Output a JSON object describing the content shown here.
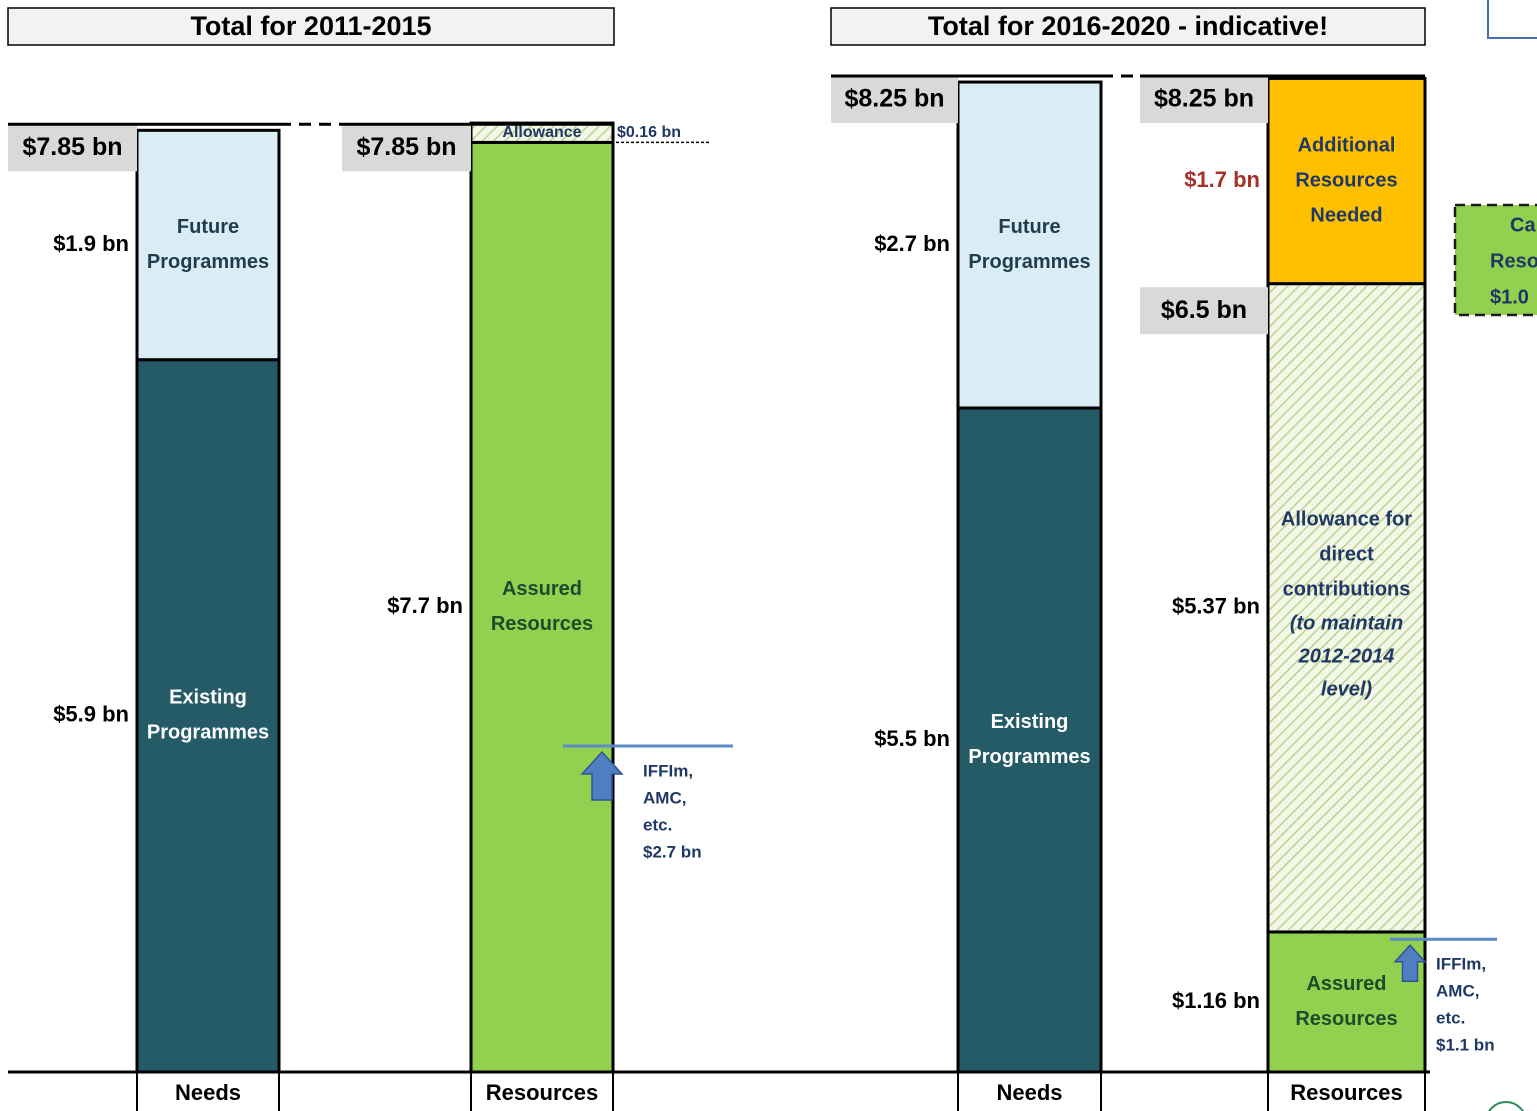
{
  "chart_data": [
    {
      "type": "stacked_bar",
      "title": "Total for 2011-2015",
      "bars": [
        {
          "category": "Needs",
          "total": 7.85,
          "total_label": "$7.85 bn",
          "segments": [
            {
              "value": 5.9,
              "value_label": "$5.9 bn",
              "lines": [
                "Existing",
                "Programmes"
              ],
              "color": "#245b66",
              "text_color": "#ffffff"
            },
            {
              "value": 1.9,
              "value_label": "$1.9 bn",
              "lines": [
                "Future",
                "Programmes"
              ],
              "color": "#daedf4",
              "text_color": "#1f3d4d"
            }
          ]
        },
        {
          "category": "Resources",
          "total": 7.85,
          "total_label": "$7.85 bn",
          "segments": [
            {
              "value": 7.7,
              "value_label": "$7.7 bn",
              "lines": [
                "Assured",
                "Resources"
              ],
              "color": "#92d050",
              "text_color": "#1f4b2c"
            },
            {
              "value": 0.16,
              "value_label": "$0.16 bn",
              "lines": [
                "Allowance"
              ],
              "color": "#dbe8bf",
              "hatch": true,
              "text_color": "#1f3864",
              "label_side": "right"
            }
          ]
        }
      ],
      "annotation": {
        "level": 2.7,
        "lines": [
          "IFFIm,",
          "AMC,",
          "etc.",
          "$2.7 bn"
        ]
      }
    },
    {
      "type": "stacked_bar",
      "title": "Total for 2016-2020  - indicative!",
      "bars": [
        {
          "category": "Needs",
          "total": 8.25,
          "total_label": "$8.25 bn",
          "segments": [
            {
              "value": 5.5,
              "value_label": "$5.5 bn",
              "lines": [
                "Existing",
                "Programmes"
              ],
              "color": "#245b66",
              "text_color": "#ffffff"
            },
            {
              "value": 2.7,
              "value_label": "$2.7 bn",
              "lines": [
                "Future",
                "Programmes"
              ],
              "color": "#daedf4",
              "text_color": "#1f3d4d"
            }
          ]
        },
        {
          "category": "Resources",
          "total": 8.25,
          "total_label": "$8.25 bn",
          "segments": [
            {
              "value": 1.16,
              "value_label": "$1.16 bn",
              "lines": [
                "Assured",
                "Resources"
              ],
              "color": "#92d050",
              "text_color": "#1f4b2c"
            },
            {
              "value": 5.37,
              "value_label": "$5.37 bn",
              "lines": [
                "Allowance for",
                "direct",
                "contributions"
              ],
              "note_lines": [
                "(to maintain",
                "2012-2014",
                "level)"
              ],
              "color": "#dbe8bf",
              "hatch": true,
              "text_color": "#1f3864",
              "top_value": 6.5,
              "top_label": "$6.5 bn"
            },
            {
              "value": 1.7,
              "value_label": "$1.7 bn",
              "label_color": "#a5302c",
              "lines": [
                "Additional",
                "Resources",
                "Needed"
              ],
              "color": "#ffc000",
              "text_color": "#1f3864"
            }
          ]
        }
      ],
      "annotation": {
        "level": 1.1,
        "lines": [
          "IFFIm,",
          "AMC,",
          "etc.",
          "$1.1 bn"
        ]
      }
    }
  ],
  "side_note": {
    "lines": [
      "Ca",
      "Reso",
      "$1.0"
    ]
  }
}
